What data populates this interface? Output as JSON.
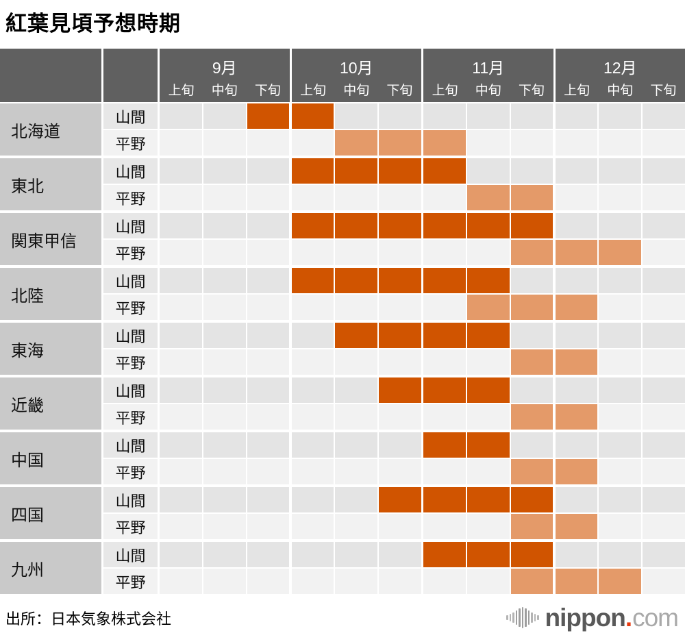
{
  "title": "紅葉見頃予想時期",
  "source": "出所：日本気象株式会社",
  "logo": {
    "name": "nippon",
    "dot": ".",
    "suffix": "com"
  },
  "colors": {
    "mountain_active": "#d05400",
    "plain_active": "#e49a69",
    "header_bg": "#606060",
    "region_bg": "#c9c9c9",
    "mountain_row_bg": "#e4e4e4",
    "plain_row_bg": "#f2f2f2"
  },
  "chart_data": {
    "type": "heatmap",
    "title": "紅葉見頃予想時期",
    "months": [
      "9月",
      "10月",
      "11月",
      "12月"
    ],
    "period_labels": [
      "上旬",
      "中旬",
      "下旬"
    ],
    "columns": [
      "9月上旬",
      "9月中旬",
      "9月下旬",
      "10月上旬",
      "10月中旬",
      "10月下旬",
      "11月上旬",
      "11月中旬",
      "11月下旬",
      "12月上旬",
      "12月中旬",
      "12月下旬"
    ],
    "row_types": [
      "山間",
      "平野"
    ],
    "regions": [
      {
        "name": "北海道",
        "rows": [
          {
            "type": "山間",
            "active_columns": [
              2,
              3
            ]
          },
          {
            "type": "平野",
            "active_columns": [
              4,
              5,
              6
            ]
          }
        ]
      },
      {
        "name": "東北",
        "rows": [
          {
            "type": "山間",
            "active_columns": [
              3,
              4,
              5,
              6
            ]
          },
          {
            "type": "平野",
            "active_columns": [
              7,
              8
            ]
          }
        ]
      },
      {
        "name": "関東甲信",
        "rows": [
          {
            "type": "山間",
            "active_columns": [
              3,
              4,
              5,
              6,
              7,
              8
            ]
          },
          {
            "type": "平野",
            "active_columns": [
              8,
              9,
              10
            ]
          }
        ]
      },
      {
        "name": "北陸",
        "rows": [
          {
            "type": "山間",
            "active_columns": [
              3,
              4,
              5,
              6,
              7
            ]
          },
          {
            "type": "平野",
            "active_columns": [
              7,
              8,
              9
            ]
          }
        ]
      },
      {
        "name": "東海",
        "rows": [
          {
            "type": "山間",
            "active_columns": [
              4,
              5,
              6,
              7
            ]
          },
          {
            "type": "平野",
            "active_columns": [
              8,
              9
            ]
          }
        ]
      },
      {
        "name": "近畿",
        "rows": [
          {
            "type": "山間",
            "active_columns": [
              5,
              6,
              7
            ]
          },
          {
            "type": "平野",
            "active_columns": [
              8,
              9
            ]
          }
        ]
      },
      {
        "name": "中国",
        "rows": [
          {
            "type": "山間",
            "active_columns": [
              6,
              7
            ]
          },
          {
            "type": "平野",
            "active_columns": [
              8,
              9
            ]
          }
        ]
      },
      {
        "name": "四国",
        "rows": [
          {
            "type": "山間",
            "active_columns": [
              5,
              6,
              7,
              8
            ]
          },
          {
            "type": "平野",
            "active_columns": [
              8,
              9
            ]
          }
        ]
      },
      {
        "name": "九州",
        "rows": [
          {
            "type": "山間",
            "active_columns": [
              6,
              7,
              8
            ]
          },
          {
            "type": "平野",
            "active_columns": [
              8,
              9,
              10
            ]
          }
        ]
      }
    ]
  }
}
